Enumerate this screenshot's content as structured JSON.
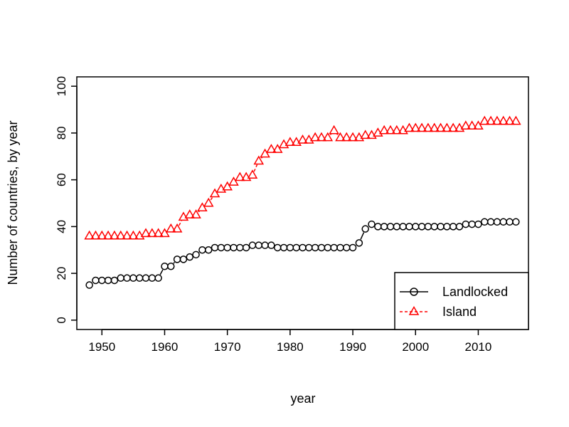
{
  "chart_data": {
    "type": "line",
    "title": "",
    "xlabel": "year",
    "ylabel": "Number of countries, by year",
    "xlim": [
      1946,
      2018
    ],
    "ylim": [
      -4,
      104
    ],
    "x_ticks": [
      1950,
      1960,
      1970,
      1980,
      1990,
      2000,
      2010
    ],
    "y_ticks": [
      0,
      20,
      40,
      60,
      80,
      100
    ],
    "grid": false,
    "legend_position": "bottom-right",
    "x": [
      1948,
      1949,
      1950,
      1951,
      1952,
      1953,
      1954,
      1955,
      1956,
      1957,
      1958,
      1959,
      1960,
      1961,
      1962,
      1963,
      1964,
      1965,
      1966,
      1967,
      1968,
      1969,
      1970,
      1971,
      1972,
      1973,
      1974,
      1975,
      1976,
      1977,
      1978,
      1979,
      1980,
      1981,
      1982,
      1983,
      1984,
      1985,
      1986,
      1987,
      1988,
      1989,
      1990,
      1991,
      1992,
      1993,
      1994,
      1995,
      1996,
      1997,
      1998,
      1999,
      2000,
      2001,
      2002,
      2003,
      2004,
      2005,
      2006,
      2007,
      2008,
      2009,
      2010,
      2011,
      2012,
      2013,
      2014,
      2015,
      2016
    ],
    "series": [
      {
        "name": "Landlocked",
        "color": "#000000",
        "marker": "circle",
        "line": "solid",
        "values": [
          15,
          17,
          17,
          17,
          17,
          18,
          18,
          18,
          18,
          18,
          18,
          18,
          23,
          23,
          26,
          26,
          27,
          28,
          30,
          30,
          31,
          31,
          31,
          31,
          31,
          31,
          32,
          32,
          32,
          32,
          31,
          31,
          31,
          31,
          31,
          31,
          31,
          31,
          31,
          31,
          31,
          31,
          31,
          33,
          39,
          41,
          40,
          40,
          40,
          40,
          40,
          40,
          40,
          40,
          40,
          40,
          40,
          40,
          40,
          40,
          41,
          41,
          41,
          42,
          42,
          42,
          42,
          42,
          42
        ]
      },
      {
        "name": "Island",
        "color": "#ff0000",
        "marker": "triangle",
        "line": "dashed",
        "values": [
          36,
          36,
          36,
          36,
          36,
          36,
          36,
          36,
          36,
          37,
          37,
          37,
          37,
          39,
          39,
          44,
          45,
          45,
          48,
          50,
          54,
          56,
          57,
          59,
          61,
          61,
          62,
          68,
          71,
          73,
          73,
          75,
          76,
          76,
          77,
          77,
          78,
          78,
          78,
          81,
          78,
          78,
          78,
          78,
          79,
          79,
          80,
          81,
          81,
          81,
          81,
          82,
          82,
          82,
          82,
          82,
          82,
          82,
          82,
          82,
          83,
          83,
          83,
          85,
          85,
          85,
          85,
          85,
          85
        ]
      }
    ]
  }
}
